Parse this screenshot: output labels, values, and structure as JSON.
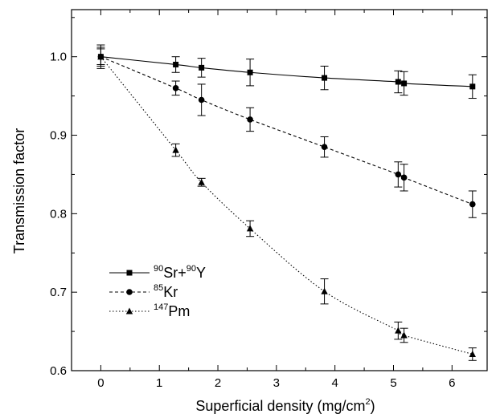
{
  "chart_data": {
    "type": "scatter",
    "title": "",
    "xlabel": "Superficial density (mg/cm",
    "xlabel_sup": "2",
    "xlabel_end": ")",
    "ylabel": "Transmission factor",
    "xlim": [
      -0.5,
      6.6
    ],
    "ylim": [
      0.6,
      1.06
    ],
    "x_ticks": [
      0,
      1,
      2,
      3,
      4,
      5,
      6
    ],
    "x_tick_labels": [
      "0",
      "1",
      "2",
      "3",
      "4",
      "5",
      "6"
    ],
    "y_ticks": [
      0.6,
      0.7,
      0.8,
      0.9,
      1.0
    ],
    "y_tick_labels": [
      "0.6",
      "0.7",
      "0.8",
      "0.9",
      "1.0"
    ],
    "legend_placement": "bottom-left",
    "grid": false,
    "series": [
      {
        "name_sup": "90",
        "name": "Sr+",
        "name_sup2": "90",
        "name_end": "Y",
        "marker": "square",
        "line": "solid",
        "color": "#000000",
        "x": [
          0,
          1.28,
          1.72,
          2.55,
          3.82,
          5.08,
          5.18,
          6.35
        ],
        "y": [
          1.0,
          0.99,
          0.986,
          0.98,
          0.973,
          0.968,
          0.966,
          0.962
        ],
        "err": [
          0.015,
          0.01,
          0.012,
          0.017,
          0.015,
          0.014,
          0.015,
          0.015
        ]
      },
      {
        "name_sup": "85",
        "name": "Kr",
        "marker": "circle",
        "line": "dashed",
        "color": "#000000",
        "x": [
          0,
          1.28,
          1.72,
          2.55,
          3.82,
          5.08,
          5.18,
          6.35
        ],
        "y": [
          1.0,
          0.96,
          0.945,
          0.92,
          0.885,
          0.85,
          0.846,
          0.812
        ],
        "err": [
          0.012,
          0.009,
          0.02,
          0.015,
          0.013,
          0.016,
          0.017,
          0.017
        ]
      },
      {
        "name_sup": "147",
        "name": "Pm",
        "marker": "triangle",
        "line": "dotted",
        "color": "#000000",
        "x": [
          0,
          1.28,
          1.72,
          2.55,
          3.82,
          5.08,
          5.18,
          6.35
        ],
        "y": [
          1.0,
          0.881,
          0.84,
          0.781,
          0.701,
          0.651,
          0.645,
          0.621
        ],
        "err": [
          0.01,
          0.008,
          0.005,
          0.01,
          0.016,
          0.011,
          0.009,
          0.008
        ]
      }
    ]
  }
}
